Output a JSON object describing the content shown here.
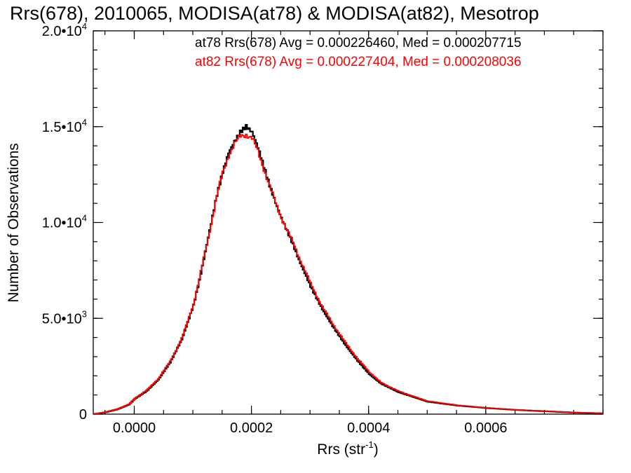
{
  "chart_data": {
    "type": "line",
    "title": "Rrs(678), 2010065, MODISA(at78) & MODISA(at82), Mesotrop",
    "xlabel": "Rrs (str",
    "xlabel_sup": "-1",
    "xlabel_close": ")",
    "ylabel": "Number of Observations",
    "xlim": [
      -7e-05,
      0.0008
    ],
    "ylim": [
      0,
      20000
    ],
    "x_ticks": [
      {
        "value": 0.0,
        "label": "0.0000"
      },
      {
        "value": 0.0002,
        "label": "0.0002"
      },
      {
        "value": 0.0004,
        "label": "0.0004"
      },
      {
        "value": 0.0006,
        "label": "0.0006"
      }
    ],
    "x_minor_step": 5e-05,
    "y_ticks": [
      {
        "value": 0,
        "mant": "0",
        "exp": ""
      },
      {
        "value": 5000,
        "mant": "5.0•10",
        "exp": "3"
      },
      {
        "value": 10000,
        "mant": "1.0•10",
        "exp": "4"
      },
      {
        "value": 15000,
        "mant": "1.5•10",
        "exp": "4"
      },
      {
        "value": 20000,
        "mant": "2.0•10",
        "exp": "4"
      }
    ],
    "y_minor_step": 1000,
    "series": [
      {
        "name": "at78",
        "color": "#000000",
        "legend": "at78 Rrs(678) Avg = 0.000226460, Med = 0.000207715",
        "x": [
          -7e-05,
          -5e-05,
          -3e-05,
          -1e-05,
          0.0,
          2e-05,
          4e-05,
          6e-05,
          8e-05,
          0.0001,
          0.00011,
          0.00012,
          0.00013,
          0.00014,
          0.00015,
          0.00016,
          0.00017,
          0.00018,
          0.00019,
          0.0002,
          0.00021,
          0.00022,
          0.00023,
          0.00024,
          0.00025,
          0.00026,
          0.00027,
          0.00028,
          0.00029,
          0.0003,
          0.00032,
          0.00034,
          0.00036,
          0.00038,
          0.0004,
          0.00042,
          0.00045,
          0.00048,
          0.0005,
          0.00055,
          0.0006,
          0.00065,
          0.0007,
          0.00075,
          0.0008
        ],
        "y": [
          0,
          100,
          250,
          500,
          800,
          1200,
          1800,
          2700,
          3900,
          5700,
          7000,
          8500,
          10000,
          11500,
          12700,
          13700,
          14300,
          14800,
          15100,
          14800,
          14000,
          13000,
          12000,
          11100,
          10300,
          9600,
          8900,
          8100,
          7400,
          6700,
          5500,
          4500,
          3600,
          2800,
          2100,
          1600,
          1150,
          850,
          650,
          450,
          320,
          220,
          150,
          80,
          40
        ]
      },
      {
        "name": "at82",
        "color": "#ff0000",
        "legend": "at82 Rrs(678) Avg = 0.000227404, Med = 0.000208036",
        "x": [
          -7e-05,
          -5e-05,
          -3e-05,
          -1e-05,
          0.0,
          2e-05,
          4e-05,
          6e-05,
          8e-05,
          0.0001,
          0.00011,
          0.00012,
          0.00013,
          0.00014,
          0.00015,
          0.00016,
          0.00017,
          0.00018,
          0.00019,
          0.0002,
          0.00021,
          0.00022,
          0.00023,
          0.00024,
          0.00025,
          0.00026,
          0.00027,
          0.00028,
          0.00029,
          0.0003,
          0.00032,
          0.00034,
          0.00036,
          0.00038,
          0.0004,
          0.00042,
          0.00045,
          0.00048,
          0.0005,
          0.00055,
          0.0006,
          0.00065,
          0.0007,
          0.00075,
          0.0008
        ],
        "y": [
          0,
          110,
          270,
          520,
          830,
          1250,
          1850,
          2750,
          3950,
          5750,
          7050,
          8500,
          9950,
          11400,
          12600,
          13500,
          14100,
          14500,
          14600,
          14400,
          13700,
          12800,
          11900,
          11000,
          10250,
          9600,
          8950,
          8200,
          7500,
          6800,
          5600,
          4600,
          3700,
          2900,
          2200,
          1650,
          1200,
          880,
          680,
          470,
          330,
          230,
          160,
          90,
          45
        ]
      }
    ]
  }
}
